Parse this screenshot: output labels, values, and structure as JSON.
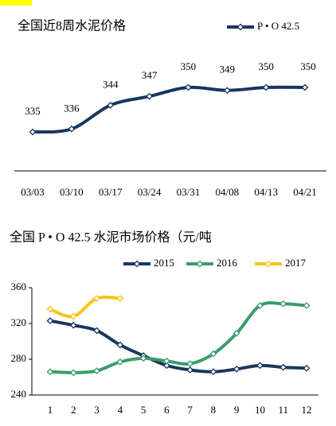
{
  "chart_data": [
    {
      "type": "line",
      "title": "全国近8周水泥价格",
      "categories": [
        "03/03",
        "03/10",
        "03/17",
        "03/24",
        "03/31",
        "04/08",
        "04/13",
        "04/21"
      ],
      "series": [
        {
          "name": "P • O 42.5",
          "color": "#17375e",
          "values": [
            335,
            336,
            344,
            347,
            350,
            349,
            350,
            350
          ]
        }
      ],
      "data_labels": true
    },
    {
      "type": "line",
      "title": "全国 P • O 42.5 水泥市场价格（元/吨",
      "categories": [
        "1",
        "2",
        "3",
        "4",
        "5",
        "6",
        "7",
        "8",
        "9",
        "10",
        "11",
        "12"
      ],
      "ylim": [
        240,
        360
      ],
      "yticks": [
        240,
        280,
        320,
        360
      ],
      "series": [
        {
          "name": "2015",
          "color": "#17375e",
          "values": [
            323,
            318,
            312,
            296,
            284,
            273,
            268,
            266,
            269,
            273,
            271,
            270
          ]
        },
        {
          "name": "2016",
          "color": "#3a9d6a",
          "values": [
            266,
            265,
            267,
            277,
            281,
            278,
            275,
            286,
            309,
            340,
            342,
            340
          ]
        },
        {
          "name": "2017",
          "color": "#f5c518",
          "values": [
            336,
            328,
            348,
            348,
            null,
            null,
            null,
            null,
            null,
            null,
            null,
            null
          ]
        }
      ]
    }
  ]
}
